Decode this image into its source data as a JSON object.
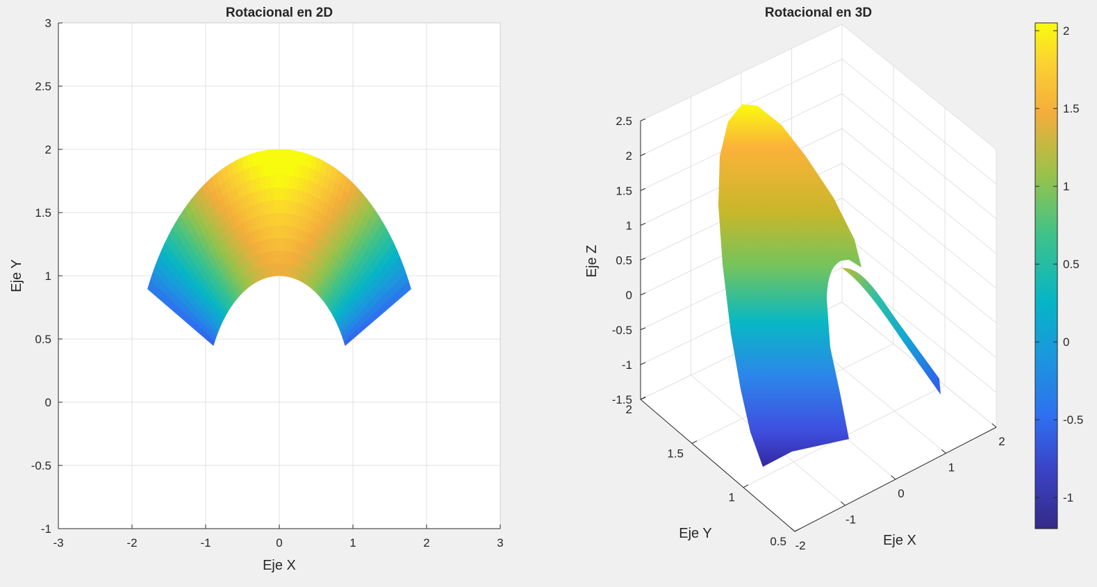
{
  "chart_data": [
    {
      "type": "surface",
      "view": "2d-top",
      "title": "Rotacional en 2D",
      "xlabel": "Eje X",
      "ylabel": "Eje Y",
      "xlim": [
        -3,
        3
      ],
      "ylim": [
        -1,
        3
      ],
      "xticks": [
        "-3",
        "-2",
        "-1",
        "0",
        "1",
        "2",
        "3"
      ],
      "yticks": [
        "-1",
        "-0.5",
        "0",
        "0.5",
        "1",
        "1.5",
        "2",
        "2.5",
        "3"
      ],
      "grid": true,
      "colormap": "parula",
      "surface": {
        "shape": "annular sector",
        "r_range": [
          1,
          2
        ],
        "theta_range_deg": [
          26.6,
          153.4
        ],
        "color_min_points": [
          [
            -1.79,
            0.89
          ],
          [
            1.79,
            0.89
          ]
        ],
        "color_max_point": [
          0,
          2
        ]
      }
    },
    {
      "type": "surface",
      "view": "3d",
      "title": "Rotacional en 3D",
      "xlabel": "Eje X",
      "ylabel": "Eje Y",
      "zlabel": "Eje Z",
      "xlim": [
        -2,
        2
      ],
      "ylim": [
        0.5,
        2
      ],
      "zlim": [
        -1.5,
        2.5
      ],
      "xticks": [
        "-2",
        "-1",
        "0",
        "1",
        "2"
      ],
      "yticks": [
        "0.5",
        "1",
        "1.5",
        "2"
      ],
      "zticks": [
        "-1.5",
        "-1",
        "-0.5",
        "0",
        "0.5",
        "1",
        "1.5",
        "2",
        "2.5"
      ],
      "grid": true,
      "colormap": "parula"
    }
  ],
  "colorbar": {
    "ticks": [
      "-1",
      "-0.5",
      "0",
      "0.5",
      "1",
      "1.5",
      "2"
    ],
    "range": [
      -1.2,
      2.05
    ]
  }
}
